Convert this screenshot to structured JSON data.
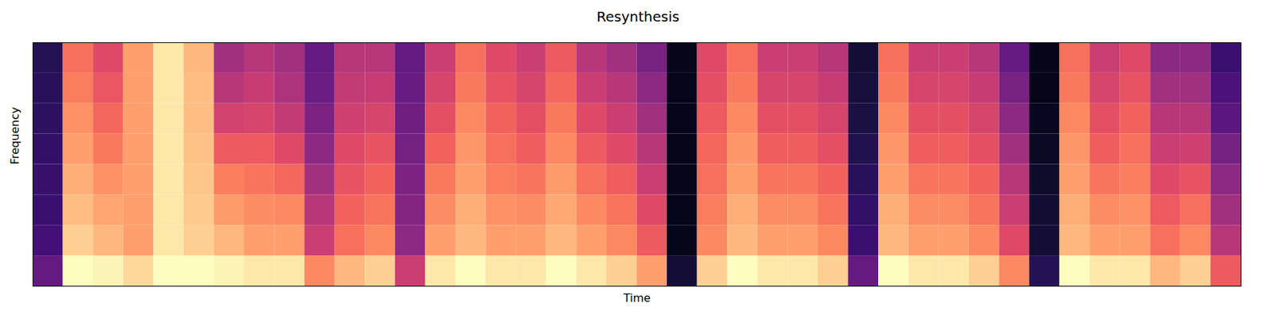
{
  "chart_data": {
    "type": "heatmap",
    "title": "Resynthesis",
    "x_label": "Time",
    "y_label": "Frequency",
    "tick_labels": false,
    "zlim": [
      0,
      100
    ],
    "cells": [
      [
        30,
        22,
        20,
        19,
        18,
        17,
        16,
        15
      ],
      [
        100,
        90,
        86,
        83,
        80,
        77,
        73,
        70
      ],
      [
        98,
        85,
        81,
        77,
        72,
        68,
        64,
        60
      ],
      [
        92,
        80,
        80,
        80,
        80,
        80,
        80,
        80
      ],
      [
        100,
        95,
        95,
        95,
        95,
        95,
        95,
        95
      ],
      [
        100,
        90,
        89,
        88,
        87,
        86,
        86,
        85
      ],
      [
        98,
        85,
        79,
        73,
        65,
        57,
        50,
        45
      ],
      [
        95,
        80,
        76,
        71,
        65,
        58,
        54,
        50
      ],
      [
        95,
        80,
        75,
        68,
        60,
        53,
        48,
        45
      ],
      [
        75,
        55,
        50,
        45,
        40,
        36,
        32,
        30
      ],
      [
        85,
        70,
        67,
        63,
        60,
        56,
        53,
        50
      ],
      [
        90,
        75,
        71,
        67,
        63,
        58,
        54,
        50
      ],
      [
        55,
        40,
        38,
        36,
        34,
        33,
        31,
        30
      ],
      [
        95,
        80,
        76,
        72,
        67,
        62,
        58,
        55
      ],
      [
        100,
        85,
        83,
        80,
        78,
        75,
        72,
        70
      ],
      [
        95,
        80,
        77,
        73,
        70,
        67,
        63,
        60
      ],
      [
        95,
        80,
        76,
        71,
        66,
        62,
        58,
        55
      ],
      [
        100,
        85,
        82,
        79,
        75,
        72,
        68,
        65
      ],
      [
        95,
        80,
        75,
        70,
        65,
        60,
        55,
        50
      ],
      [
        90,
        75,
        71,
        66,
        60,
        55,
        50,
        45
      ],
      [
        80,
        65,
        60,
        55,
        50,
        45,
        40,
        35
      ],
      [
        10,
        5,
        5,
        5,
        5,
        5,
        5,
        5
      ],
      [
        90,
        75,
        73,
        70,
        68,
        65,
        62,
        60
      ],
      [
        100,
        85,
        83,
        80,
        78,
        75,
        72,
        70
      ],
      [
        95,
        80,
        76,
        71,
        66,
        62,
        58,
        55
      ],
      [
        95,
        80,
        76,
        71,
        66,
        62,
        58,
        55
      ],
      [
        90,
        75,
        71,
        67,
        62,
        58,
        54,
        50
      ],
      [
        30,
        20,
        18,
        16,
        14,
        12,
        11,
        10
      ],
      [
        100,
        85,
        83,
        80,
        78,
        75,
        72,
        70
      ],
      [
        95,
        80,
        76,
        71,
        66,
        62,
        58,
        55
      ],
      [
        95,
        80,
        76,
        71,
        66,
        62,
        58,
        55
      ],
      [
        90,
        75,
        71,
        67,
        62,
        58,
        54,
        50
      ],
      [
        75,
        60,
        55,
        50,
        45,
        40,
        35,
        30
      ],
      [
        15,
        10,
        9,
        8,
        7,
        6,
        5,
        5
      ],
      [
        100,
        85,
        83,
        80,
        78,
        75,
        72,
        70
      ],
      [
        95,
        80,
        76,
        71,
        66,
        62,
        58,
        55
      ],
      [
        95,
        80,
        77,
        73,
        70,
        67,
        63,
        60
      ],
      [
        85,
        70,
        65,
        60,
        55,
        50,
        45,
        40
      ],
      [
        90,
        75,
        70,
        63,
        56,
        50,
        45,
        40
      ],
      [
        65,
        50,
        45,
        40,
        34,
        28,
        24,
        20
      ]
    ]
  }
}
